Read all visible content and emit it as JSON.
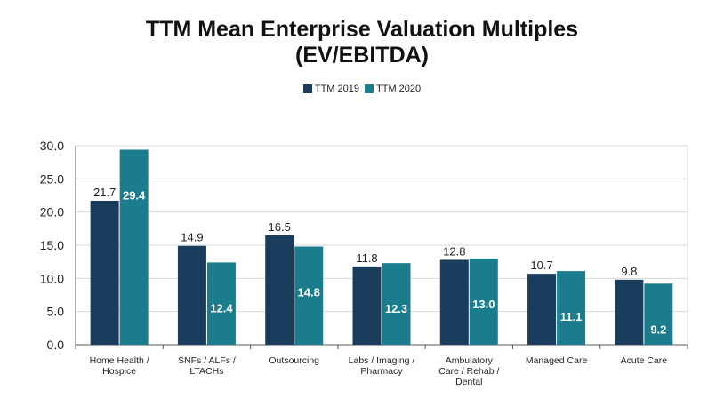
{
  "title_line1": "TTM Mean Enterprise Valuation Multiples",
  "title_line2": "(EV/EBITDA)",
  "colors": {
    "ttm2019": "#1a3d5e",
    "ttm2020": "#1a7c8c"
  },
  "chart_data": {
    "type": "bar",
    "title": "TTM Mean Enterprise Valuation Multiples (EV/EBITDA)",
    "categories": [
      [
        "Home Health /",
        "Hospice"
      ],
      [
        "SNFs / ALFs /",
        "LTACHs"
      ],
      [
        "Outsourcing"
      ],
      [
        "Labs / Imaging /",
        "Pharmacy"
      ],
      [
        "Ambulatory",
        "Care / Rehab /",
        "Dental"
      ],
      [
        "Managed Care"
      ],
      [
        "Acute Care"
      ]
    ],
    "series": [
      {
        "name": "TTM 2019",
        "values": [
          21.7,
          14.9,
          16.5,
          11.8,
          12.8,
          10.7,
          9.8
        ]
      },
      {
        "name": "TTM 2020",
        "values": [
          29.4,
          12.4,
          14.8,
          12.3,
          13.0,
          11.1,
          9.2
        ]
      }
    ],
    "data_label_position": {
      "TTM 2019": "above",
      "TTM 2020": "inside"
    },
    "yticks": [
      "0.0",
      "5.0",
      "10.0",
      "15.0",
      "20.0",
      "25.0",
      "30.0"
    ],
    "ylim": [
      0,
      30
    ],
    "grid": true,
    "legend": "top-center"
  }
}
